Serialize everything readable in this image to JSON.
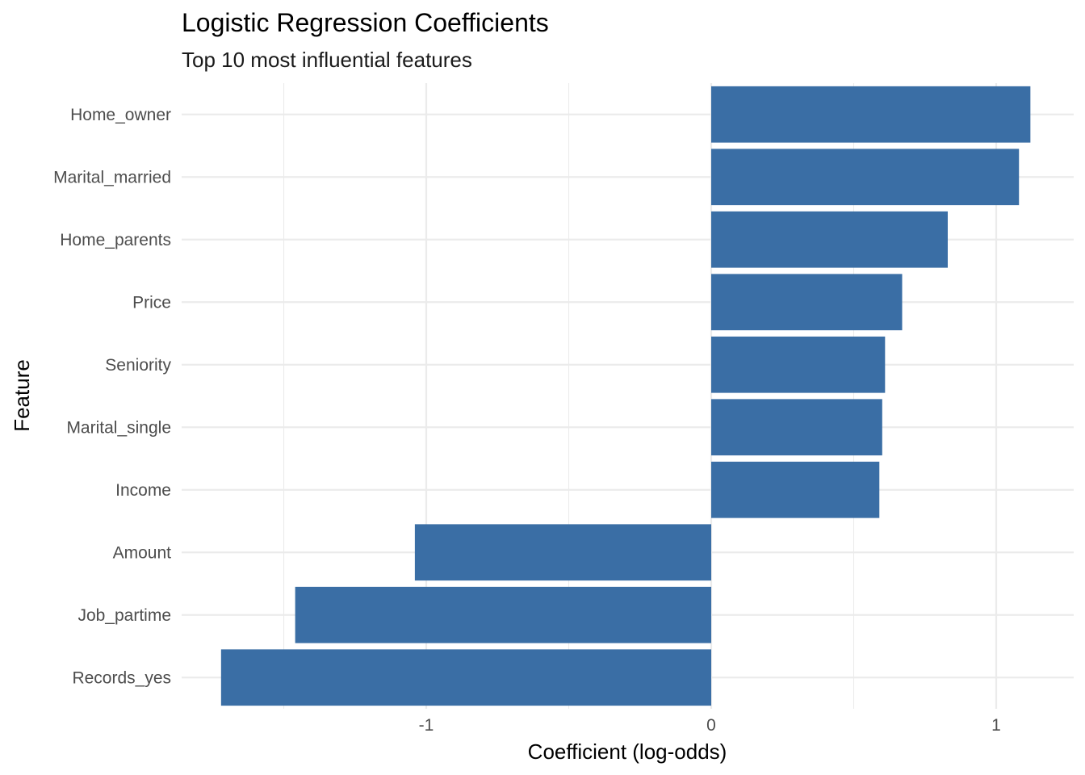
{
  "chart_data": {
    "type": "bar",
    "orientation": "horizontal",
    "title": "Logistic Regression Coefficients",
    "subtitle": "Top 10 most influential features",
    "xlabel": "Coefficient (log-odds)",
    "ylabel": "Feature",
    "xlim": [
      -1.8,
      1.23
    ],
    "x_ticks": [
      -1,
      0,
      1
    ],
    "x_tick_labels": [
      "-1",
      "0",
      "1"
    ],
    "grid": true,
    "legend": "none",
    "bar_color": "#3A6EA5",
    "categories": [
      "Home_owner",
      "Marital_married",
      "Home_parents",
      "Price",
      "Seniority",
      "Marital_single",
      "Income",
      "Amount",
      "Job_partime",
      "Records_yes"
    ],
    "values": [
      1.12,
      1.08,
      0.83,
      0.67,
      0.61,
      0.6,
      0.59,
      -1.04,
      -1.46,
      -1.72
    ]
  }
}
